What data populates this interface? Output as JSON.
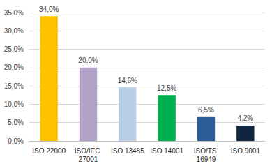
{
  "chart_data": {
    "type": "bar",
    "categories": [
      "ISO 22000",
      "ISO/IEC 27001",
      "ISO 13485",
      "ISO 14001",
      "ISO/TS 16949",
      "ISO 9001"
    ],
    "values": [
      34.0,
      20.0,
      14.6,
      12.5,
      6.5,
      4.2
    ],
    "value_labels": [
      "34,0%",
      "20,0%",
      "14,6%",
      "12,5%",
      "6,5%",
      "4,2%"
    ],
    "colors": [
      "#ffc000",
      "#b3a2c7",
      "#b9cde5",
      "#00b050",
      "#2e5e9a",
      "#10253f"
    ],
    "ylim": [
      0,
      35
    ],
    "yticks": [
      {
        "value": 0,
        "label": "0,0%"
      },
      {
        "value": 5,
        "label": "5,0%"
      },
      {
        "value": 10,
        "label": "10,0%"
      },
      {
        "value": 15,
        "label": "15,0%"
      },
      {
        "value": 20,
        "label": "20,0%"
      },
      {
        "value": 25,
        "label": "25,0%"
      },
      {
        "value": 30,
        "label": "30,0%"
      },
      {
        "value": 35,
        "label": "35,0%"
      }
    ],
    "grid": true,
    "data_labels": true
  }
}
